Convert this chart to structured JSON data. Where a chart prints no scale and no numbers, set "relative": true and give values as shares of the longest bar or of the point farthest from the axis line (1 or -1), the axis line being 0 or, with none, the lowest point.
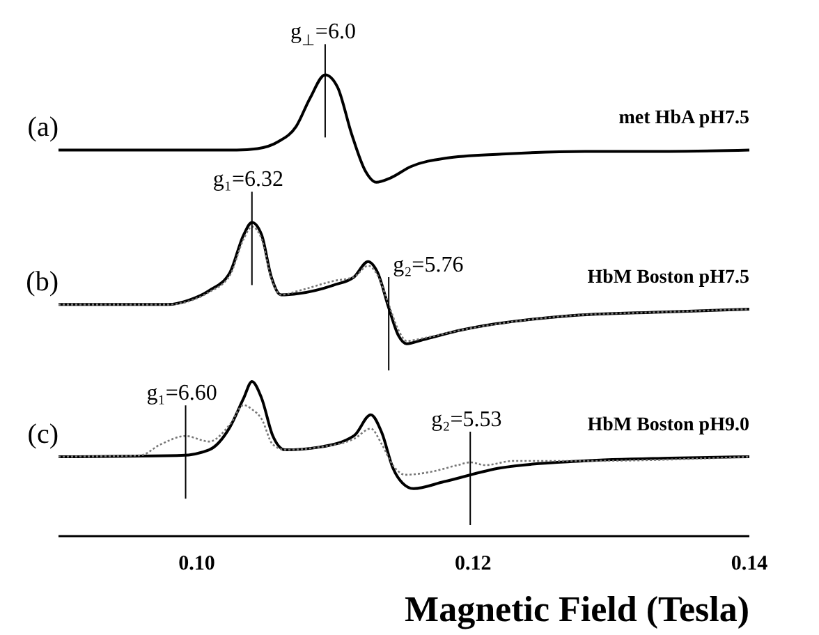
{
  "chart_data": {
    "type": "line",
    "relative": true,
    "xlabel": "Magnetic Field (Tesla)",
    "xlim": [
      0.09,
      0.14
    ],
    "xticks": [
      {
        "value": 0.1,
        "label": "0.10"
      },
      {
        "value": 0.12,
        "label": "0.12"
      },
      {
        "value": 0.14,
        "label": "0.14"
      }
    ],
    "grid": false,
    "legend": false,
    "line_style": "solid",
    "series": [
      {
        "name": "met HbA  pH7.5",
        "color": "#000000",
        "x": [
          0.09,
          0.1029,
          0.1044,
          0.1059,
          0.1072,
          0.1082,
          0.1093,
          0.1102,
          0.1112,
          0.1122,
          0.113,
          0.114,
          0.1155,
          0.118,
          0.1221,
          0.1281,
          0.1342,
          0.14
        ],
        "values": [
          0.837,
          0.837,
          0.84,
          0.855,
          0.888,
          0.949,
          1.0,
          0.973,
          0.873,
          0.792,
          0.767,
          0.776,
          0.801,
          0.819,
          0.828,
          0.834,
          0.834,
          0.837
        ]
      },
      {
        "name": "HbM Boston  pH7.5",
        "color": "#000000",
        "x": [
          0.09,
          0.0979,
          0.0994,
          0.1009,
          0.1024,
          0.1034,
          0.104,
          0.1047,
          0.1054,
          0.1061,
          0.1074,
          0.1099,
          0.1114,
          0.1124,
          0.1131,
          0.1139,
          0.1146,
          0.1152,
          0.1164,
          0.1192,
          0.1267,
          0.134,
          0.14
        ],
        "values": [
          0.502,
          0.502,
          0.511,
          0.532,
          0.571,
          0.653,
          0.68,
          0.653,
          0.562,
          0.523,
          0.526,
          0.544,
          0.562,
          0.595,
          0.571,
          0.495,
          0.435,
          0.417,
          0.426,
          0.447,
          0.477,
          0.486,
          0.492
        ]
      },
      {
        "color": "#777777",
        "line_style": "dotted",
        "x": [
          0.09,
          0.0979,
          0.1009,
          0.1024,
          0.1034,
          0.104,
          0.1047,
          0.1054,
          0.1061,
          0.1074,
          0.1099,
          0.1114,
          0.1124,
          0.1131,
          0.1139,
          0.1146,
          0.1152,
          0.1164,
          0.1192,
          0.1267,
          0.134,
          0.14
        ],
        "values": [
          0.502,
          0.502,
          0.529,
          0.565,
          0.644,
          0.671,
          0.644,
          0.559,
          0.523,
          0.532,
          0.553,
          0.562,
          0.586,
          0.565,
          0.502,
          0.447,
          0.423,
          0.429,
          0.447,
          0.477,
          0.486,
          0.492
        ]
      },
      {
        "name": "HbM Boston  pH9.0",
        "color": "#000000",
        "x": [
          0.09,
          0.0989,
          0.1009,
          0.1024,
          0.1034,
          0.104,
          0.1047,
          0.1055,
          0.1064,
          0.1089,
          0.1114,
          0.1126,
          0.1134,
          0.1142,
          0.1149,
          0.1157,
          0.1179,
          0.122,
          0.128,
          0.1342,
          0.14
        ],
        "values": [
          0.172,
          0.175,
          0.187,
          0.236,
          0.299,
          0.335,
          0.299,
          0.218,
          0.187,
          0.193,
          0.218,
          0.263,
          0.224,
          0.148,
          0.115,
          0.103,
          0.118,
          0.148,
          0.163,
          0.169,
          0.172
        ]
      },
      {
        "color": "#777777",
        "line_style": "dotted",
        "x": [
          0.09,
          0.0959,
          0.0974,
          0.0992,
          0.1009,
          0.1024,
          0.1034,
          0.104,
          0.1047,
          0.1055,
          0.1064,
          0.1089,
          0.1114,
          0.1126,
          0.1134,
          0.1142,
          0.1151,
          0.1169,
          0.1189,
          0.1198,
          0.1209,
          0.1229,
          0.128,
          0.14
        ],
        "values": [
          0.172,
          0.175,
          0.199,
          0.217,
          0.205,
          0.242,
          0.284,
          0.275,
          0.254,
          0.199,
          0.187,
          0.193,
          0.211,
          0.233,
          0.199,
          0.154,
          0.133,
          0.139,
          0.154,
          0.16,
          0.154,
          0.163,
          0.163,
          0.172
        ]
      }
    ],
    "annotations": [
      "(a)",
      "(b)",
      "(c)",
      {
        "text": "g$_{⊥}$=6.0",
        "x": 0.1093,
        "y": 1.0
      },
      {
        "text": "g₁=6.32",
        "x": 0.104,
        "y": 0.68
      },
      {
        "text": "g₂=5.76",
        "x": 0.1139,
        "y": 0.495
      },
      {
        "text": "g₁=6.60",
        "x": 0.0992,
        "y": 0.217
      },
      {
        "text": "g₂=5.53",
        "x": 0.1198,
        "y": 0.16
      }
    ]
  }
}
